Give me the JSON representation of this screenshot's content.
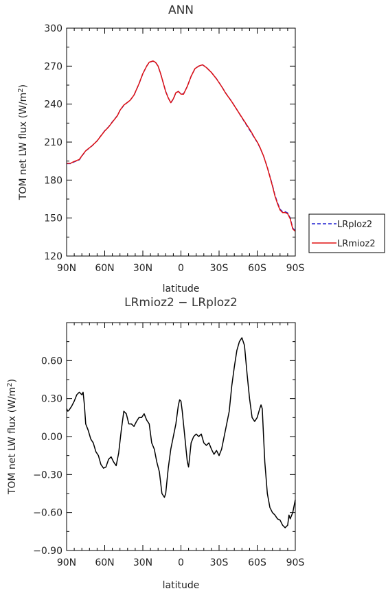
{
  "chart_data": [
    {
      "type": "line",
      "title": "ANN",
      "xlabel": "latitude",
      "ylabel_main": "TOM net LW flux (W/m",
      "ylabel_sup": "2",
      "ylabel_close": ")",
      "xlim": [
        90,
        -90
      ],
      "ylim": [
        120,
        300
      ],
      "xticks": [
        90,
        60,
        30,
        0,
        -30,
        -60,
        -90
      ],
      "xtick_labels": [
        "90N",
        "60N",
        "30N",
        "0",
        "30S",
        "60S",
        "90S"
      ],
      "yticks": [
        120,
        150,
        180,
        210,
        240,
        270,
        300
      ],
      "ytick_labels": [
        "120",
        "150",
        "180",
        "210",
        "240",
        "270",
        "300"
      ],
      "grid": false,
      "legend_position": "right",
      "series": [
        {
          "name": "LRploz2",
          "color": "#1f1fd0",
          "dash": "dashed",
          "x": [
            90,
            87,
            85,
            80,
            78,
            75,
            70,
            66,
            63,
            60,
            57,
            54,
            50,
            48,
            45,
            40,
            37,
            33,
            30,
            27,
            25,
            22,
            20,
            18,
            16,
            14,
            12,
            10,
            8,
            6,
            4,
            2,
            0,
            -2,
            -5,
            -8,
            -11,
            -14,
            -17,
            -20,
            -24,
            -28,
            -32,
            -35,
            -40,
            -45,
            -50,
            -55,
            -58,
            -60,
            -62,
            -65,
            -68,
            -70,
            -72,
            -74,
            -76,
            -78,
            -80,
            -82,
            -84,
            -86,
            -88,
            -90
          ],
          "y": [
            193,
            193,
            194,
            196,
            199,
            203,
            207,
            211,
            215,
            219,
            222,
            226,
            231,
            235,
            239,
            243,
            247,
            256,
            264,
            270,
            273,
            274,
            273,
            270,
            264,
            257,
            250,
            245,
            241,
            244,
            249,
            250,
            248,
            248,
            254,
            262,
            268,
            270,
            271,
            269,
            265,
            260,
            254,
            249,
            242,
            234,
            226,
            218,
            213,
            210,
            206,
            199,
            190,
            183,
            176,
            168,
            162,
            157,
            155,
            155,
            154,
            150,
            142,
            140
          ]
        },
        {
          "name": "LRmioz2",
          "color": "#e01010",
          "dash": "solid",
          "x": [
            90,
            87,
            85,
            80,
            78,
            75,
            70,
            66,
            63,
            60,
            57,
            54,
            50,
            48,
            45,
            40,
            37,
            33,
            30,
            27,
            25,
            22,
            20,
            18,
            16,
            14,
            12,
            10,
            8,
            6,
            4,
            2,
            0,
            -2,
            -5,
            -8,
            -11,
            -14,
            -17,
            -20,
            -24,
            -28,
            -32,
            -35,
            -40,
            -45,
            -50,
            -55,
            -58,
            -60,
            -62,
            -65,
            -68,
            -70,
            -72,
            -74,
            -76,
            -78,
            -80,
            -82,
            -84,
            -86,
            -88,
            -90
          ],
          "y": [
            193.2,
            193.2,
            194.3,
            196.3,
            199.2,
            203.1,
            207.1,
            210.9,
            214.9,
            218.8,
            221.9,
            225.8,
            230.9,
            235.1,
            239.2,
            243.0,
            247.1,
            256.1,
            264.1,
            270.0,
            273.1,
            274.1,
            273.0,
            270.0,
            264.1,
            257.0,
            249.8,
            244.9,
            241.1,
            244.2,
            249.0,
            250.0,
            247.9,
            247.8,
            254.1,
            262.0,
            268.0,
            270.0,
            271.1,
            268.9,
            265.0,
            259.9,
            253.9,
            248.9,
            241.9,
            234.0,
            226.4,
            218.6,
            213.3,
            210.2,
            206.3,
            199.0,
            189.8,
            182.6,
            175.4,
            167.4,
            161.3,
            156.3,
            154.3,
            154.4,
            153.4,
            149.4,
            141.4,
            139.5
          ]
        }
      ]
    },
    {
      "type": "line",
      "title": "LRmioz2 − LRploz2",
      "xlabel": "latitude",
      "ylabel_main": "TOM net LW flux (W/m",
      "ylabel_sup": "2",
      "ylabel_close": ")",
      "xlim": [
        90,
        -90
      ],
      "ylim": [
        -0.9,
        0.9
      ],
      "xticks": [
        90,
        60,
        30,
        0,
        -30,
        -60,
        -90
      ],
      "xtick_labels": [
        "90N",
        "60N",
        "30N",
        "0",
        "30S",
        "60S",
        "90S"
      ],
      "yticks": [
        -0.9,
        -0.6,
        -0.3,
        0.0,
        0.3,
        0.6
      ],
      "ytick_labels": [
        "−0.90",
        "−0.60",
        "−0.30",
        "0.00",
        "0.30",
        "0.60"
      ],
      "grid": false,
      "series": [
        {
          "color": "#000000",
          "dash": "solid",
          "x": [
            90,
            89,
            88,
            86,
            84,
            82,
            80,
            78,
            77,
            76,
            75,
            73,
            71,
            69,
            67,
            65,
            63,
            61,
            59,
            57,
            55,
            53,
            51,
            49,
            47,
            45,
            43,
            41,
            39,
            37,
            35,
            33,
            31,
            29,
            27,
            25,
            23,
            21,
            19,
            17,
            15,
            13,
            12,
            10,
            8,
            6,
            4,
            2,
            1,
            0,
            -1,
            -2,
            -3,
            -4,
            -5,
            -6,
            -7,
            -8,
            -10,
            -12,
            -14,
            -16,
            -18,
            -20,
            -22,
            -24,
            -26,
            -28,
            -30,
            -32,
            -34,
            -36,
            -38,
            -40,
            -42,
            -44,
            -46,
            -48,
            -50,
            -52,
            -54,
            -56,
            -58,
            -60,
            -62,
            -63,
            -64,
            -65,
            -66,
            -68,
            -70,
            -72,
            -74,
            -76,
            -78,
            -80,
            -82,
            -84,
            -85,
            -86,
            -88,
            -90
          ],
          "y": [
            0.22,
            0.2,
            0.21,
            0.24,
            0.28,
            0.33,
            0.35,
            0.33,
            0.35,
            0.25,
            0.1,
            0.05,
            -0.02,
            -0.05,
            -0.12,
            -0.15,
            -0.22,
            -0.25,
            -0.24,
            -0.18,
            -0.16,
            -0.2,
            -0.23,
            -0.13,
            0.05,
            0.2,
            0.18,
            0.1,
            0.1,
            0.08,
            0.12,
            0.15,
            0.15,
            0.18,
            0.13,
            0.1,
            -0.05,
            -0.1,
            -0.2,
            -0.28,
            -0.45,
            -0.48,
            -0.45,
            -0.25,
            -0.1,
            0.0,
            0.1,
            0.25,
            0.29,
            0.28,
            0.2,
            0.1,
            0.0,
            -0.1,
            -0.2,
            -0.24,
            -0.15,
            -0.05,
            0.0,
            0.02,
            0.0,
            0.02,
            -0.05,
            -0.07,
            -0.05,
            -0.1,
            -0.14,
            -0.11,
            -0.15,
            -0.1,
            0.0,
            0.1,
            0.2,
            0.4,
            0.55,
            0.68,
            0.75,
            0.78,
            0.72,
            0.5,
            0.3,
            0.15,
            0.12,
            0.15,
            0.22,
            0.25,
            0.22,
            0.0,
            -0.2,
            -0.45,
            -0.56,
            -0.6,
            -0.62,
            -0.65,
            -0.66,
            -0.7,
            -0.72,
            -0.7,
            -0.62,
            -0.65,
            -0.6,
            -0.5
          ]
        }
      ]
    }
  ]
}
